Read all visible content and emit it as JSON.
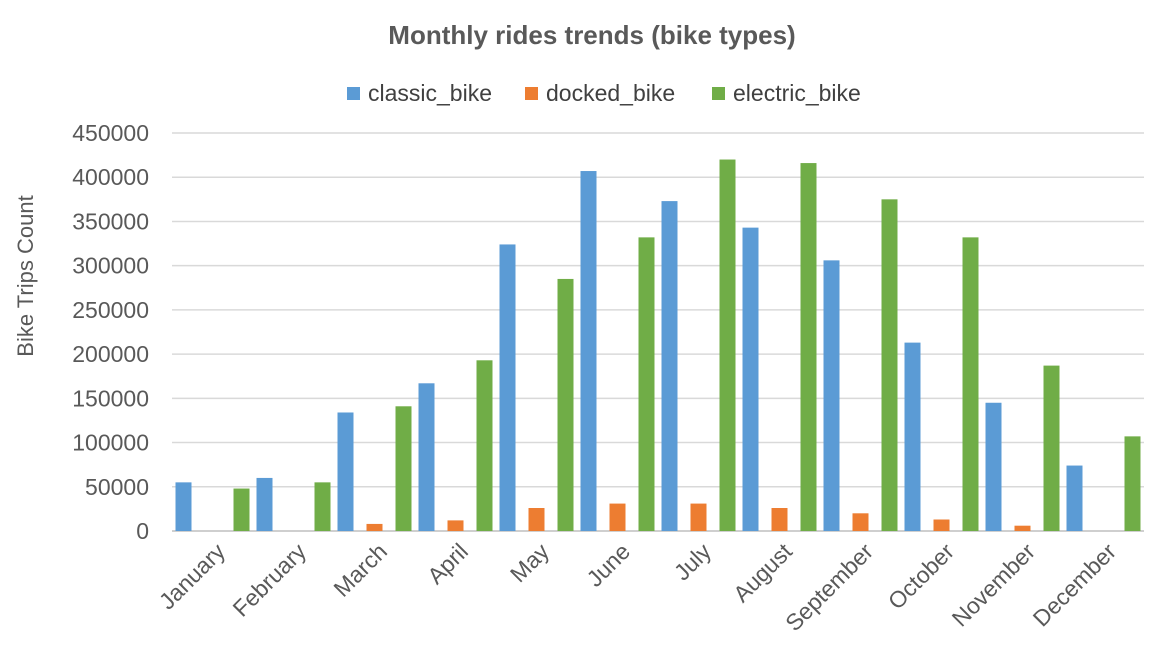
{
  "chart_data": {
    "type": "bar",
    "title": "Monthly rides trends (bike types)",
    "ylabel": "Bike Trips Count",
    "xlabel": "",
    "ylim": [
      0,
      450000
    ],
    "yticks": [
      0,
      50000,
      100000,
      150000,
      200000,
      250000,
      300000,
      350000,
      400000,
      450000
    ],
    "grid": true,
    "legend_position": "top",
    "categories": [
      "January",
      "February",
      "March",
      "April",
      "May",
      "June",
      "July",
      "August",
      "September",
      "October",
      "November",
      "December"
    ],
    "series": [
      {
        "name": "classic_bike",
        "color": "#5b9bd5",
        "values": [
          55000,
          60000,
          134000,
          167000,
          324000,
          407000,
          373000,
          343000,
          306000,
          213000,
          145000,
          74000
        ]
      },
      {
        "name": "docked_bike",
        "color": "#ed7d31",
        "values": [
          0,
          0,
          8000,
          12000,
          26000,
          31000,
          31000,
          26000,
          20000,
          13000,
          6000,
          0
        ]
      },
      {
        "name": "electric_bike",
        "color": "#70ad47",
        "values": [
          48000,
          55000,
          141000,
          193000,
          285000,
          332000,
          420000,
          416000,
          375000,
          332000,
          187000,
          107000
        ]
      }
    ]
  }
}
